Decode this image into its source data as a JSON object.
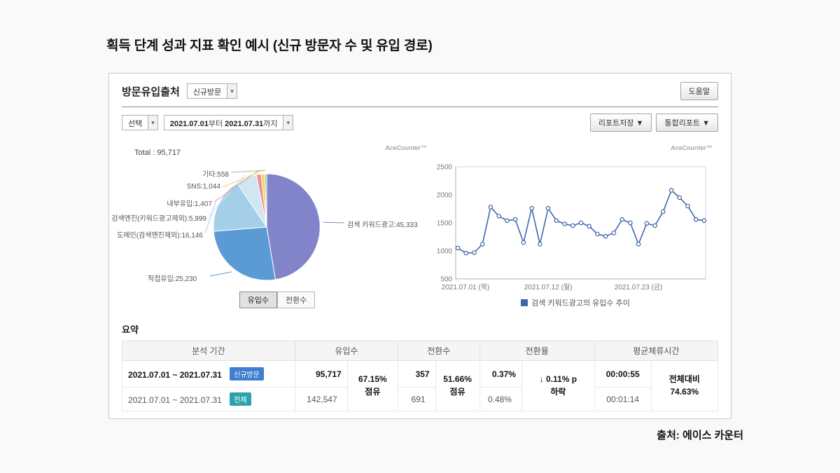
{
  "page": {
    "title_strong": "획득 단계",
    "title_rest": "성과 지표 확인 예시 (신규 방문자 수 및 유입 경로)",
    "source": "출처: 에이스 카운터"
  },
  "panel": {
    "title": "방문유입출처",
    "visit_select_value": "신규방문",
    "help_button": "도움말",
    "filter_select_label": "선택",
    "date_from": "2021.07.01",
    "date_from_suffix": "부터",
    "date_to": "2021.07.31",
    "date_to_suffix": "까지",
    "report_save_button": "리포트저장 ▼",
    "integrated_report_button": "통합리포트 ▼",
    "brand": "AceCounter™"
  },
  "pie_section": {
    "total_label": "Total : 95,717",
    "labels": [
      "검색 키워드광고:45,333",
      "직접유입:25,230",
      "도메인(검색엔진제외):16,146",
      "검색엔진(키워드광고제외):5,999",
      "내부유입:1,407",
      "SNS:1,044",
      "기타:558"
    ],
    "toggle_inflow": "유입수",
    "toggle_conversion": "전환수"
  },
  "line_section": {
    "legend": "검색 키워드광고의 유입수 추이"
  },
  "summary": {
    "heading": "요약",
    "columns": [
      "분석 기간",
      "유입수",
      "전환수",
      "전환율",
      "평균체류시간"
    ],
    "rows": [
      {
        "period": "2021.07.01 ~ 2021.07.31",
        "badge": "신규방문",
        "badge_color": "#3d7fd0",
        "inflow": "95,717",
        "inflow_note": [
          "67.15%",
          "점유"
        ],
        "conversion": "357",
        "conversion_note": [
          "51.66%",
          "점유"
        ],
        "rate": "0.37%",
        "rate_note": [
          "↓ 0.11% p",
          "하락"
        ],
        "duration": "00:00:55",
        "duration_note": [
          "전체대비",
          "74.63%"
        ]
      },
      {
        "period": "2021.07.01 ~ 2021.07.31",
        "badge": "전체",
        "badge_color": "#2ba3ab",
        "inflow": "142,547",
        "conversion": "691",
        "rate": "0.48%",
        "duration": "00:01:14"
      }
    ]
  },
  "chart_data": [
    {
      "type": "pie",
      "title": "유입수 (신규방문 방문유입출처)",
      "total": 95717,
      "labels": [
        "검색 키워드광고",
        "직접유입",
        "도메인(검색엔진제외)",
        "검색엔진(키워드광고제외)",
        "내부유입",
        "SNS",
        "기타"
      ],
      "values": [
        45333,
        25230,
        16146,
        5999,
        1407,
        1044,
        558
      ],
      "colors": [
        "#8184c9",
        "#5b9bd5",
        "#a5cfe9",
        "#cfe6f3",
        "#ef9090",
        "#f3d169",
        "#94c87d"
      ]
    },
    {
      "type": "line",
      "title": "검색 키워드광고의 유입수 추이",
      "color": "#4066ad",
      "x": [
        1,
        2,
        3,
        4,
        5,
        6,
        7,
        8,
        9,
        10,
        11,
        12,
        13,
        14,
        15,
        16,
        17,
        18,
        19,
        20,
        21,
        22,
        23,
        24,
        25,
        26,
        27,
        28,
        29,
        30,
        31
      ],
      "values": [
        1050,
        960,
        970,
        1120,
        1780,
        1620,
        1540,
        1560,
        1150,
        1760,
        1120,
        1760,
        1540,
        1480,
        1450,
        1500,
        1440,
        1300,
        1260,
        1320,
        1560,
        1500,
        1120,
        1490,
        1450,
        1700,
        2080,
        1950,
        1800,
        1560,
        1540
      ],
      "ylim": [
        500,
        2500
      ],
      "yticks": [
        500,
        1000,
        1500,
        2000,
        2500
      ],
      "xticks": [
        {
          "day": 1,
          "label": "2021.07.01 (목)"
        },
        {
          "day": 12,
          "label": "2021.07.12 (월)"
        },
        {
          "day": 23,
          "label": "2021.07.23 (금)"
        }
      ]
    }
  ]
}
